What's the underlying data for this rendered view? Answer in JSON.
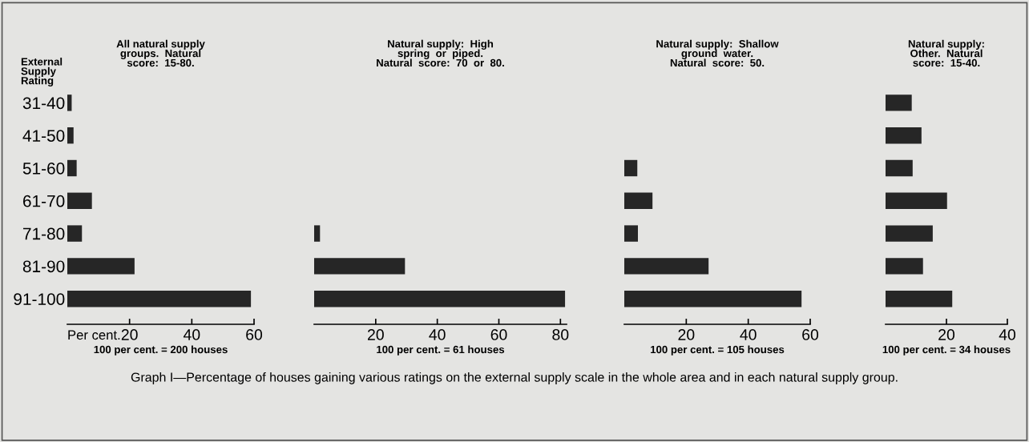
{
  "chart_data": [
    {
      "type": "bar",
      "orientation": "horizontal",
      "title": "All natural supply\ngroups.  Natural\nscore:  15-80.",
      "ylabel": "External\nSupply\nRating",
      "xlabel": "100 per cent. = 200 houses",
      "categories": [
        "31-40",
        "41-50",
        "51-60",
        "61-70",
        "71-80",
        "81-90",
        "91-100"
      ],
      "values": [
        1.4,
        2.0,
        3.0,
        7.9,
        4.7,
        21.6,
        59
      ],
      "color": "#262626",
      "xlim": [
        0,
        60
      ],
      "xticks": [
        20,
        40,
        60
      ],
      "annotations": [
        "Per cent.",
        "Graph I—Percentage of houses gaining various ratings on the external supply scale in the whole area and in each natural supply group."
      ]
    },
    {
      "type": "bar",
      "orientation": "horizontal",
      "title": "Natural supply:  High\nspring  or  piped.\nNatural  score:  70  or  80.",
      "xlabel": "100 per cent. = 61 houses",
      "categories": [
        null,
        null,
        null,
        null,
        null,
        null,
        null
      ],
      "values": [
        0,
        0,
        0,
        0,
        1.9,
        29.5,
        81.5
      ],
      "color": "#262626",
      "xlim": [
        0,
        82
      ],
      "xticks": [
        20,
        40,
        60,
        80
      ]
    },
    {
      "type": "bar",
      "orientation": "horizontal",
      "title": "Natural supply:  Shallow\nground  water.\nNatural  score:  50.",
      "xlabel": "100 per cent. = 105 houses",
      "categories": [
        null,
        null,
        null,
        null,
        null,
        null,
        null
      ],
      "values": [
        0,
        0,
        4.2,
        9.1,
        4.4,
        27.2,
        57.2
      ],
      "color": "#262626",
      "xlim": [
        0,
        60
      ],
      "xticks": [
        20,
        40,
        60
      ]
    },
    {
      "type": "bar",
      "orientation": "horizontal",
      "title": "Natural supply:\nOther.  Natural\nscore:  15-40.",
      "xlabel": "100 per cent. = 34 houses",
      "categories": [
        null,
        null,
        null,
        null,
        null,
        null,
        null
      ],
      "values": [
        8.6,
        11.8,
        8.9,
        20.2,
        15.5,
        12.3,
        21.9
      ],
      "color": "#262626",
      "xlim": [
        0,
        40
      ],
      "xticks": [
        20,
        40
      ]
    }
  ]
}
